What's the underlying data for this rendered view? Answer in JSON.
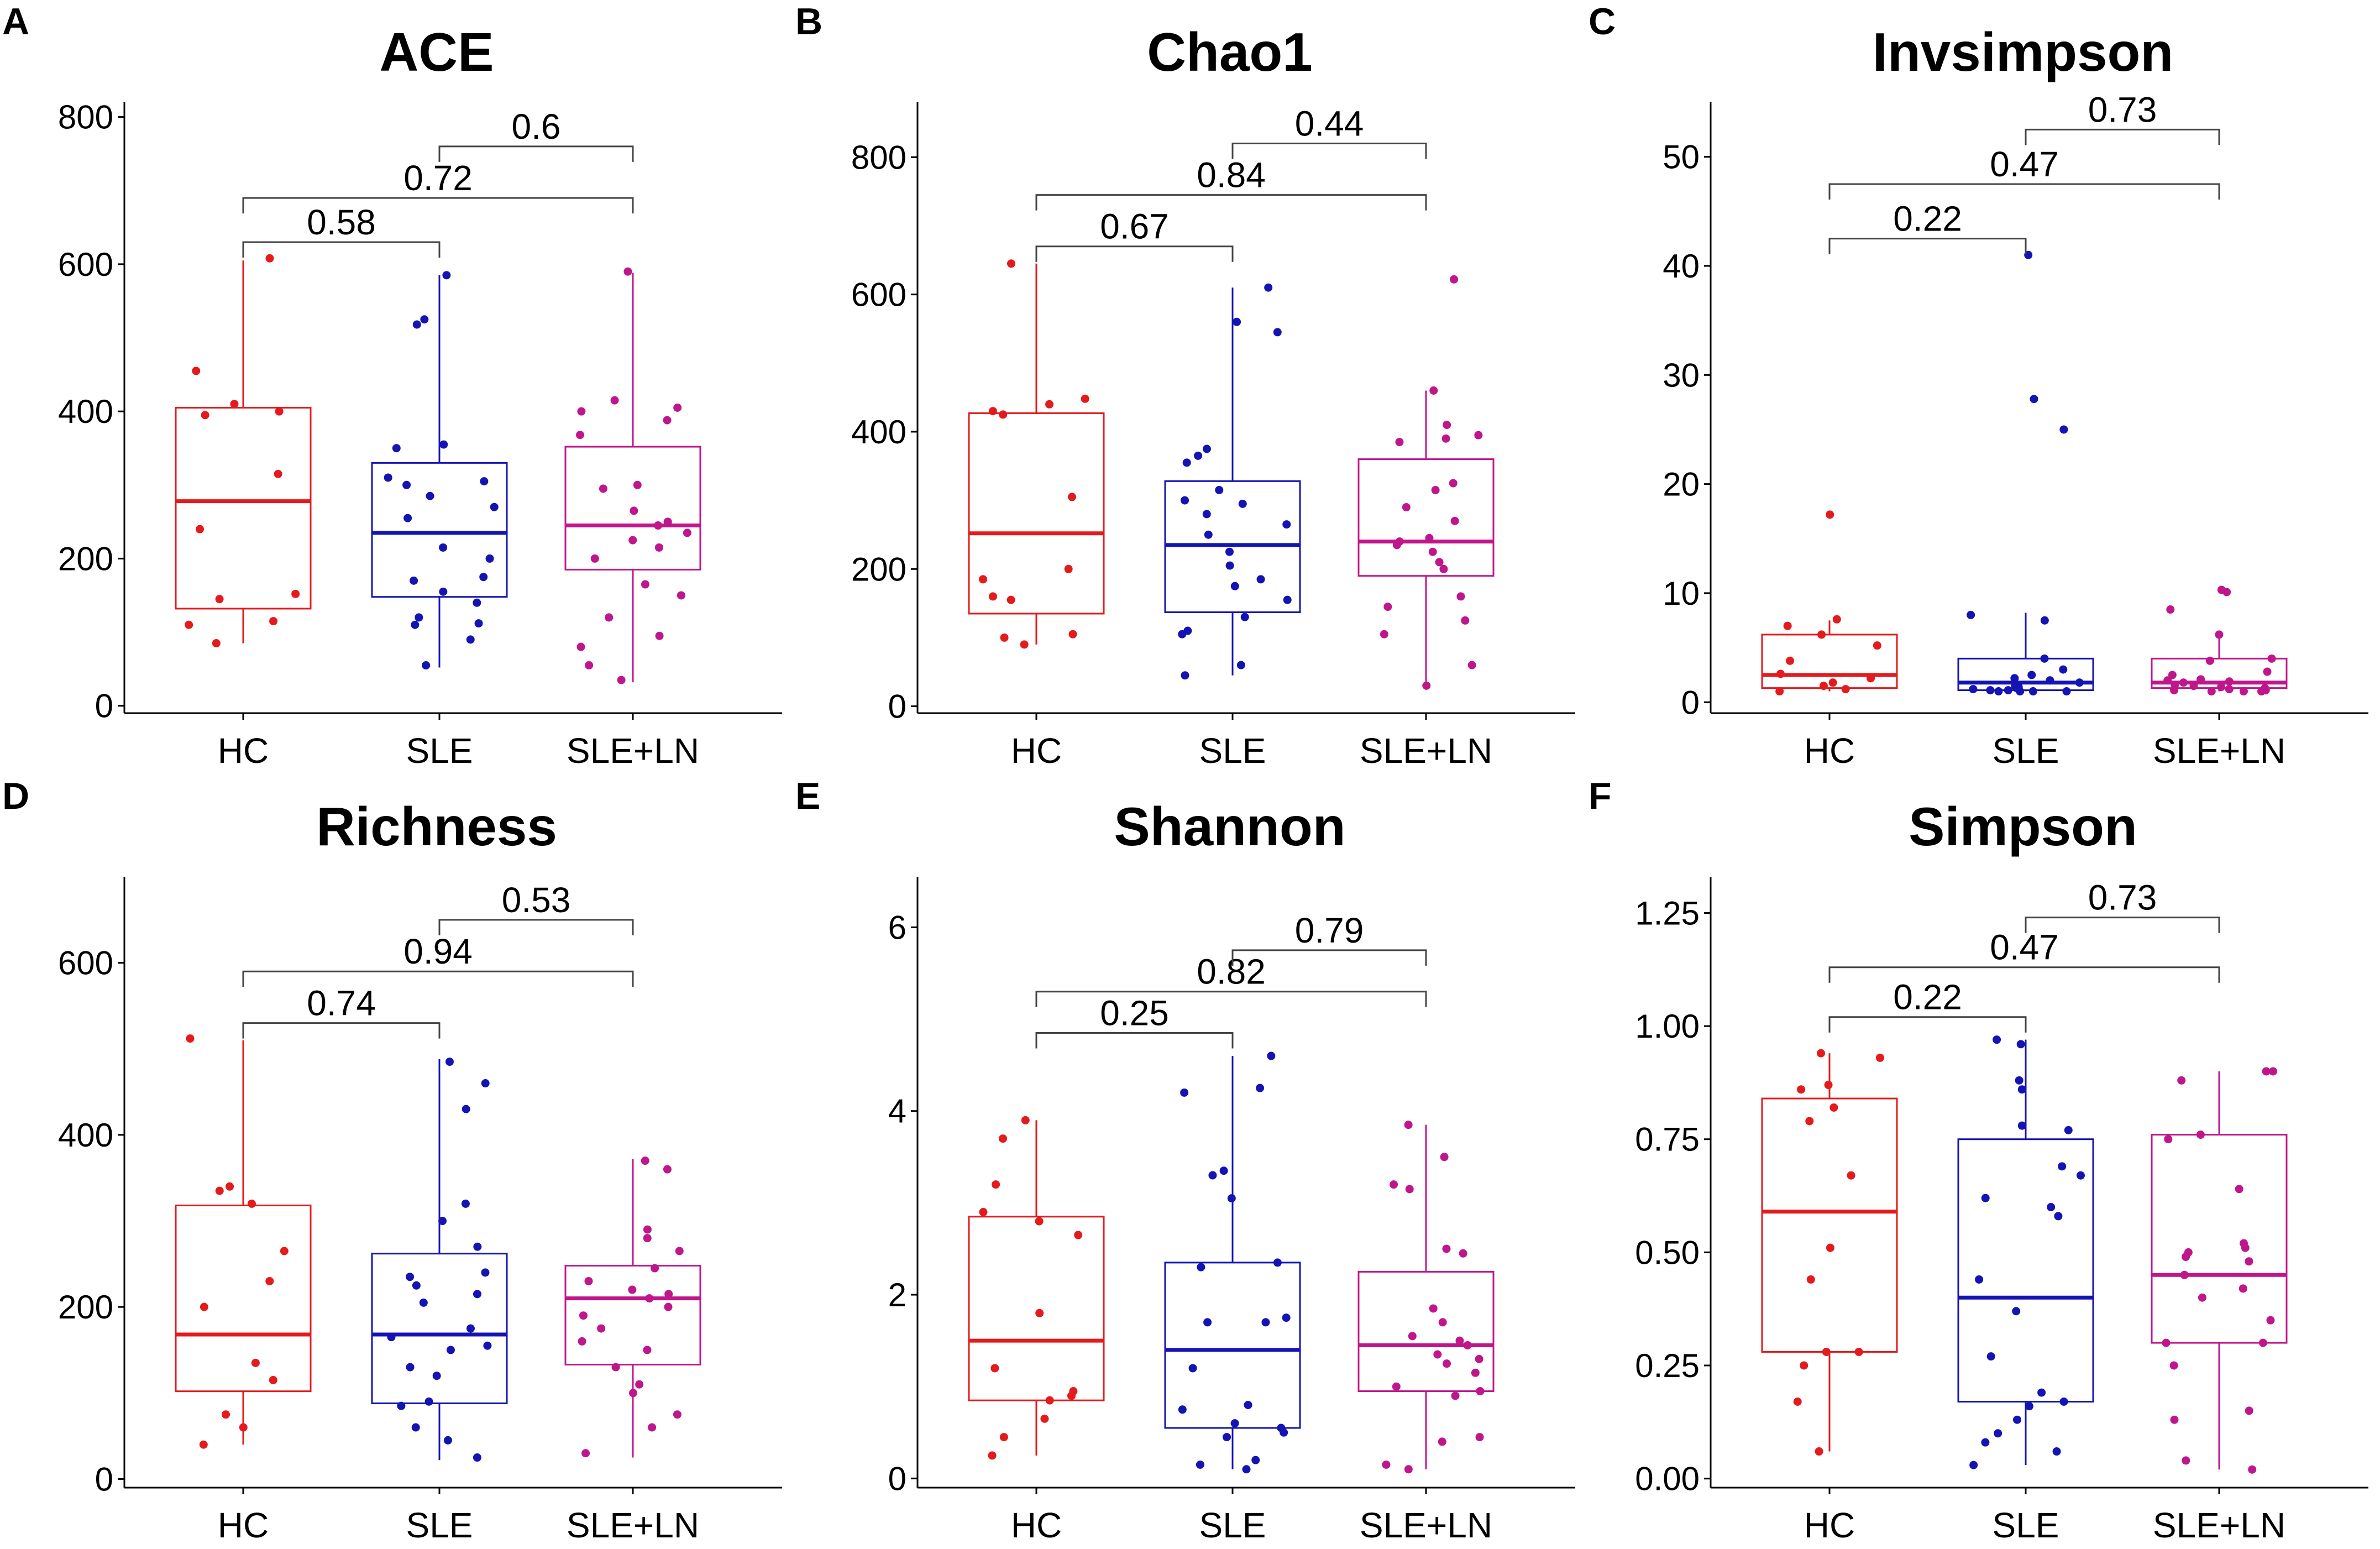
{
  "groups": [
    "HC",
    "SLE",
    "SLE+LN"
  ],
  "colors": {
    "HC": "#e41a1c",
    "SLE": "#1414b4",
    "SLE+LN": "#c0168c",
    "axis": "#000000",
    "bracket": "#444444"
  },
  "chart_data": [
    {
      "type": "boxplot",
      "label": "A",
      "title": "ACE",
      "ylim": [
        -10,
        820
      ],
      "yticks": [
        "0",
        "200",
        "400",
        "600",
        "800"
      ],
      "ytick_values": [
        0,
        200,
        400,
        600,
        800
      ],
      "categories": [
        "HC",
        "SLE",
        "SLE+LN"
      ],
      "boxes": [
        {
          "name": "HC",
          "lower": 85,
          "q1": 132,
          "median": 278,
          "q3": 405,
          "upper": 605
        },
        {
          "name": "SLE",
          "lower": 52,
          "q1": 148,
          "median": 235,
          "q3": 330,
          "upper": 585
        },
        {
          "name": "SLE+LN",
          "lower": 32,
          "q1": 185,
          "median": 245,
          "q3": 352,
          "upper": 588
        }
      ],
      "points": [
        [
          608,
          455,
          410,
          400,
          395,
          315,
          240,
          152,
          145,
          115,
          110,
          85
        ],
        [
          585,
          525,
          518,
          355,
          350,
          310,
          305,
          300,
          285,
          270,
          255,
          215,
          200,
          175,
          170,
          155,
          140,
          120,
          112,
          110,
          90,
          55
        ],
        [
          590,
          415,
          405,
          400,
          388,
          368,
          300,
          295,
          265,
          250,
          245,
          235,
          225,
          215,
          200,
          165,
          150,
          120,
          95,
          80,
          55,
          35
        ]
      ],
      "comparisons": [
        {
          "label": "0.58",
          "from": "HC",
          "to": "SLE",
          "y": 630
        },
        {
          "label": "0.72",
          "from": "HC",
          "to": "SLE+LN",
          "y": 690
        },
        {
          "label": "0.6",
          "from": "SLE",
          "to": "SLE+LN",
          "y": 760
        }
      ]
    },
    {
      "type": "boxplot",
      "label": "B",
      "title": "Chao1",
      "ylim": [
        -10,
        880
      ],
      "yticks": [
        "0",
        "200",
        "400",
        "600",
        "800"
      ],
      "ytick_values": [
        0,
        200,
        400,
        600,
        800
      ],
      "categories": [
        "HC",
        "SLE",
        "SLE+LN"
      ],
      "boxes": [
        {
          "name": "HC",
          "lower": 90,
          "q1": 135,
          "median": 252,
          "q3": 427,
          "upper": 645
        },
        {
          "name": "SLE",
          "lower": 45,
          "q1": 137,
          "median": 235,
          "q3": 328,
          "upper": 610
        },
        {
          "name": "SLE+LN",
          "lower": 30,
          "q1": 190,
          "median": 240,
          "q3": 360,
          "upper": 460
        }
      ],
      "points": [
        [
          645,
          448,
          440,
          430,
          425,
          305,
          200,
          185,
          160,
          155,
          105,
          100,
          90
        ],
        [
          610,
          560,
          545,
          375,
          365,
          355,
          315,
          300,
          295,
          280,
          265,
          250,
          225,
          205,
          185,
          175,
          155,
          130,
          110,
          105,
          60,
          45
        ],
        [
          622,
          460,
          410,
          395,
          390,
          385,
          325,
          315,
          290,
          270,
          245,
          240,
          235,
          225,
          210,
          200,
          160,
          145,
          125,
          105,
          60,
          30
        ]
      ],
      "comparisons": [
        {
          "label": "0.67",
          "from": "HC",
          "to": "SLE",
          "y": 670
        },
        {
          "label": "0.84",
          "from": "HC",
          "to": "SLE+LN",
          "y": 745
        },
        {
          "label": "0.44",
          "from": "SLE",
          "to": "SLE+LN",
          "y": 820
        }
      ]
    },
    {
      "type": "boxplot",
      "label": "C",
      "title": "Invsimpson",
      "ylim": [
        -1,
        55
      ],
      "yticks": [
        "0",
        "10",
        "20",
        "30",
        "40",
        "50"
      ],
      "ytick_values": [
        0,
        10,
        20,
        30,
        40,
        50
      ],
      "categories": [
        "HC",
        "SLE",
        "SLE+LN"
      ],
      "boxes": [
        {
          "name": "HC",
          "lower": 1.0,
          "q1": 1.3,
          "median": 2.5,
          "q3": 6.2,
          "upper": 7.5
        },
        {
          "name": "SLE",
          "lower": 1.0,
          "q1": 1.1,
          "median": 1.8,
          "q3": 4.0,
          "upper": 8.2
        },
        {
          "name": "SLE+LN",
          "lower": 1.0,
          "q1": 1.3,
          "median": 1.8,
          "q3": 4.0,
          "upper": 6.0
        }
      ],
      "points": [
        [
          17.2,
          7.6,
          7.0,
          6.2,
          5.2,
          3.8,
          2.6,
          2.2,
          1.8,
          1.5,
          1.2,
          1.0
        ],
        [
          41.0,
          27.8,
          25.0,
          8.0,
          7.5,
          4.0,
          3.0,
          2.5,
          2.2,
          2.0,
          1.8,
          1.5,
          1.4,
          1.3,
          1.2,
          1.1,
          1.1,
          1.0,
          1.0,
          1.0,
          1.0
        ],
        [
          10.3,
          10.1,
          8.5,
          6.2,
          4.0,
          3.8,
          2.8,
          2.5,
          2.1,
          2.0,
          1.9,
          1.8,
          1.6,
          1.5,
          1.4,
          1.3,
          1.2,
          1.1,
          1.1,
          1.0,
          1.0,
          1.0
        ]
      ],
      "comparisons": [
        {
          "label": "0.22",
          "from": "HC",
          "to": "SLE",
          "y": 42.5
        },
        {
          "label": "0.47",
          "from": "HC",
          "to": "SLE+LN",
          "y": 47.5
        },
        {
          "label": "0.73",
          "from": "SLE",
          "to": "SLE+LN",
          "y": 52.5
        }
      ]
    },
    {
      "type": "boxplot",
      "label": "D",
      "title": "Richness",
      "ylim": [
        -10,
        700
      ],
      "yticks": [
        "0",
        "200",
        "400",
        "600"
      ],
      "ytick_values": [
        0,
        200,
        400,
        600
      ],
      "categories": [
        "HC",
        "SLE",
        "SLE+LN"
      ],
      "boxes": [
        {
          "name": "HC",
          "lower": 40,
          "q1": 102,
          "median": 168,
          "q3": 318,
          "upper": 510
        },
        {
          "name": "SLE",
          "lower": 22,
          "q1": 88,
          "median": 168,
          "q3": 262,
          "upper": 488
        },
        {
          "name": "SLE+LN",
          "lower": 25,
          "q1": 133,
          "median": 210,
          "q3": 248,
          "upper": 372
        }
      ],
      "points": [
        [
          512,
          340,
          335,
          320,
          265,
          230,
          200,
          135,
          115,
          75,
          60,
          40
        ],
        [
          485,
          460,
          430,
          320,
          300,
          270,
          240,
          235,
          225,
          215,
          205,
          175,
          165,
          155,
          150,
          130,
          120,
          90,
          85,
          60,
          45,
          25
        ],
        [
          370,
          360,
          290,
          280,
          265,
          245,
          230,
          220,
          215,
          210,
          200,
          190,
          175,
          160,
          150,
          130,
          110,
          100,
          75,
          60,
          30
        ]
      ],
      "comparisons": [
        {
          "label": "0.74",
          "from": "HC",
          "to": "SLE",
          "y": 530
        },
        {
          "label": "0.94",
          "from": "HC",
          "to": "SLE+LN",
          "y": 590
        },
        {
          "label": "0.53",
          "from": "SLE",
          "to": "SLE+LN",
          "y": 650
        }
      ]
    },
    {
      "type": "boxplot",
      "label": "E",
      "title": "Shannon",
      "ylim": [
        -0.1,
        6.55
      ],
      "yticks": [
        "0",
        "2",
        "4",
        "6"
      ],
      "ytick_values": [
        0,
        2,
        4,
        6
      ],
      "categories": [
        "HC",
        "SLE",
        "SLE+LN"
      ],
      "boxes": [
        {
          "name": "HC",
          "lower": 0.25,
          "q1": 0.85,
          "median": 1.5,
          "q3": 2.85,
          "upper": 3.9
        },
        {
          "name": "SLE",
          "lower": 0.1,
          "q1": 0.55,
          "median": 1.4,
          "q3": 2.35,
          "upper": 4.6
        },
        {
          "name": "SLE+LN",
          "lower": 0.1,
          "q1": 0.95,
          "median": 1.45,
          "q3": 2.25,
          "upper": 3.85
        }
      ],
      "points": [
        [
          3.9,
          3.7,
          3.2,
          2.9,
          2.8,
          2.65,
          1.8,
          1.2,
          0.95,
          0.9,
          0.85,
          0.65,
          0.45,
          0.25
        ],
        [
          4.6,
          4.25,
          4.2,
          3.35,
          3.3,
          3.05,
          2.35,
          2.3,
          1.75,
          1.7,
          1.7,
          1.2,
          0.8,
          0.75,
          0.6,
          0.55,
          0.5,
          0.45,
          0.2,
          0.15,
          0.1
        ],
        [
          3.85,
          3.5,
          3.2,
          3.15,
          2.5,
          2.45,
          1.85,
          1.7,
          1.55,
          1.5,
          1.45,
          1.35,
          1.3,
          1.25,
          1.15,
          1.0,
          0.95,
          0.9,
          0.45,
          0.4,
          0.15,
          0.1
        ]
      ],
      "comparisons": [
        {
          "label": "0.25",
          "from": "HC",
          "to": "SLE",
          "y": 4.85
        },
        {
          "label": "0.82",
          "from": "HC",
          "to": "SLE+LN",
          "y": 5.3
        },
        {
          "label": "0.79",
          "from": "SLE",
          "to": "SLE+LN",
          "y": 5.75
        }
      ]
    },
    {
      "type": "boxplot",
      "label": "F",
      "title": "Simpson",
      "ylim": [
        -0.02,
        1.33
      ],
      "yticks": [
        "0.00",
        "0.25",
        "0.50",
        "0.75",
        "1.00",
        "1.25"
      ],
      "ytick_values": [
        0,
        0.25,
        0.5,
        0.75,
        1.0,
        1.25
      ],
      "categories": [
        "HC",
        "SLE",
        "SLE+LN"
      ],
      "boxes": [
        {
          "name": "HC",
          "lower": 0.06,
          "q1": 0.28,
          "median": 0.59,
          "q3": 0.84,
          "upper": 0.94
        },
        {
          "name": "SLE",
          "lower": 0.03,
          "q1": 0.17,
          "median": 0.4,
          "q3": 0.75,
          "upper": 0.97
        },
        {
          "name": "SLE+LN",
          "lower": 0.02,
          "q1": 0.3,
          "median": 0.45,
          "q3": 0.76,
          "upper": 0.9
        }
      ],
      "points": [
        [
          0.94,
          0.93,
          0.87,
          0.86,
          0.82,
          0.79,
          0.67,
          0.51,
          0.44,
          0.28,
          0.28,
          0.25,
          0.17,
          0.06
        ],
        [
          0.97,
          0.96,
          0.88,
          0.86,
          0.78,
          0.77,
          0.69,
          0.67,
          0.62,
          0.6,
          0.58,
          0.44,
          0.37,
          0.27,
          0.19,
          0.17,
          0.16,
          0.13,
          0.1,
          0.08,
          0.06,
          0.03
        ],
        [
          0.9,
          0.9,
          0.88,
          0.76,
          0.75,
          0.64,
          0.52,
          0.51,
          0.5,
          0.49,
          0.48,
          0.45,
          0.42,
          0.4,
          0.35,
          0.3,
          0.3,
          0.25,
          0.15,
          0.13,
          0.04,
          0.02
        ]
      ],
      "comparisons": [
        {
          "label": "0.22",
          "from": "HC",
          "to": "SLE",
          "y": 1.02
        },
        {
          "label": "0.47",
          "from": "HC",
          "to": "SLE+LN",
          "y": 1.13
        },
        {
          "label": "0.73",
          "from": "SLE",
          "to": "SLE+LN",
          "y": 1.24
        }
      ]
    }
  ]
}
